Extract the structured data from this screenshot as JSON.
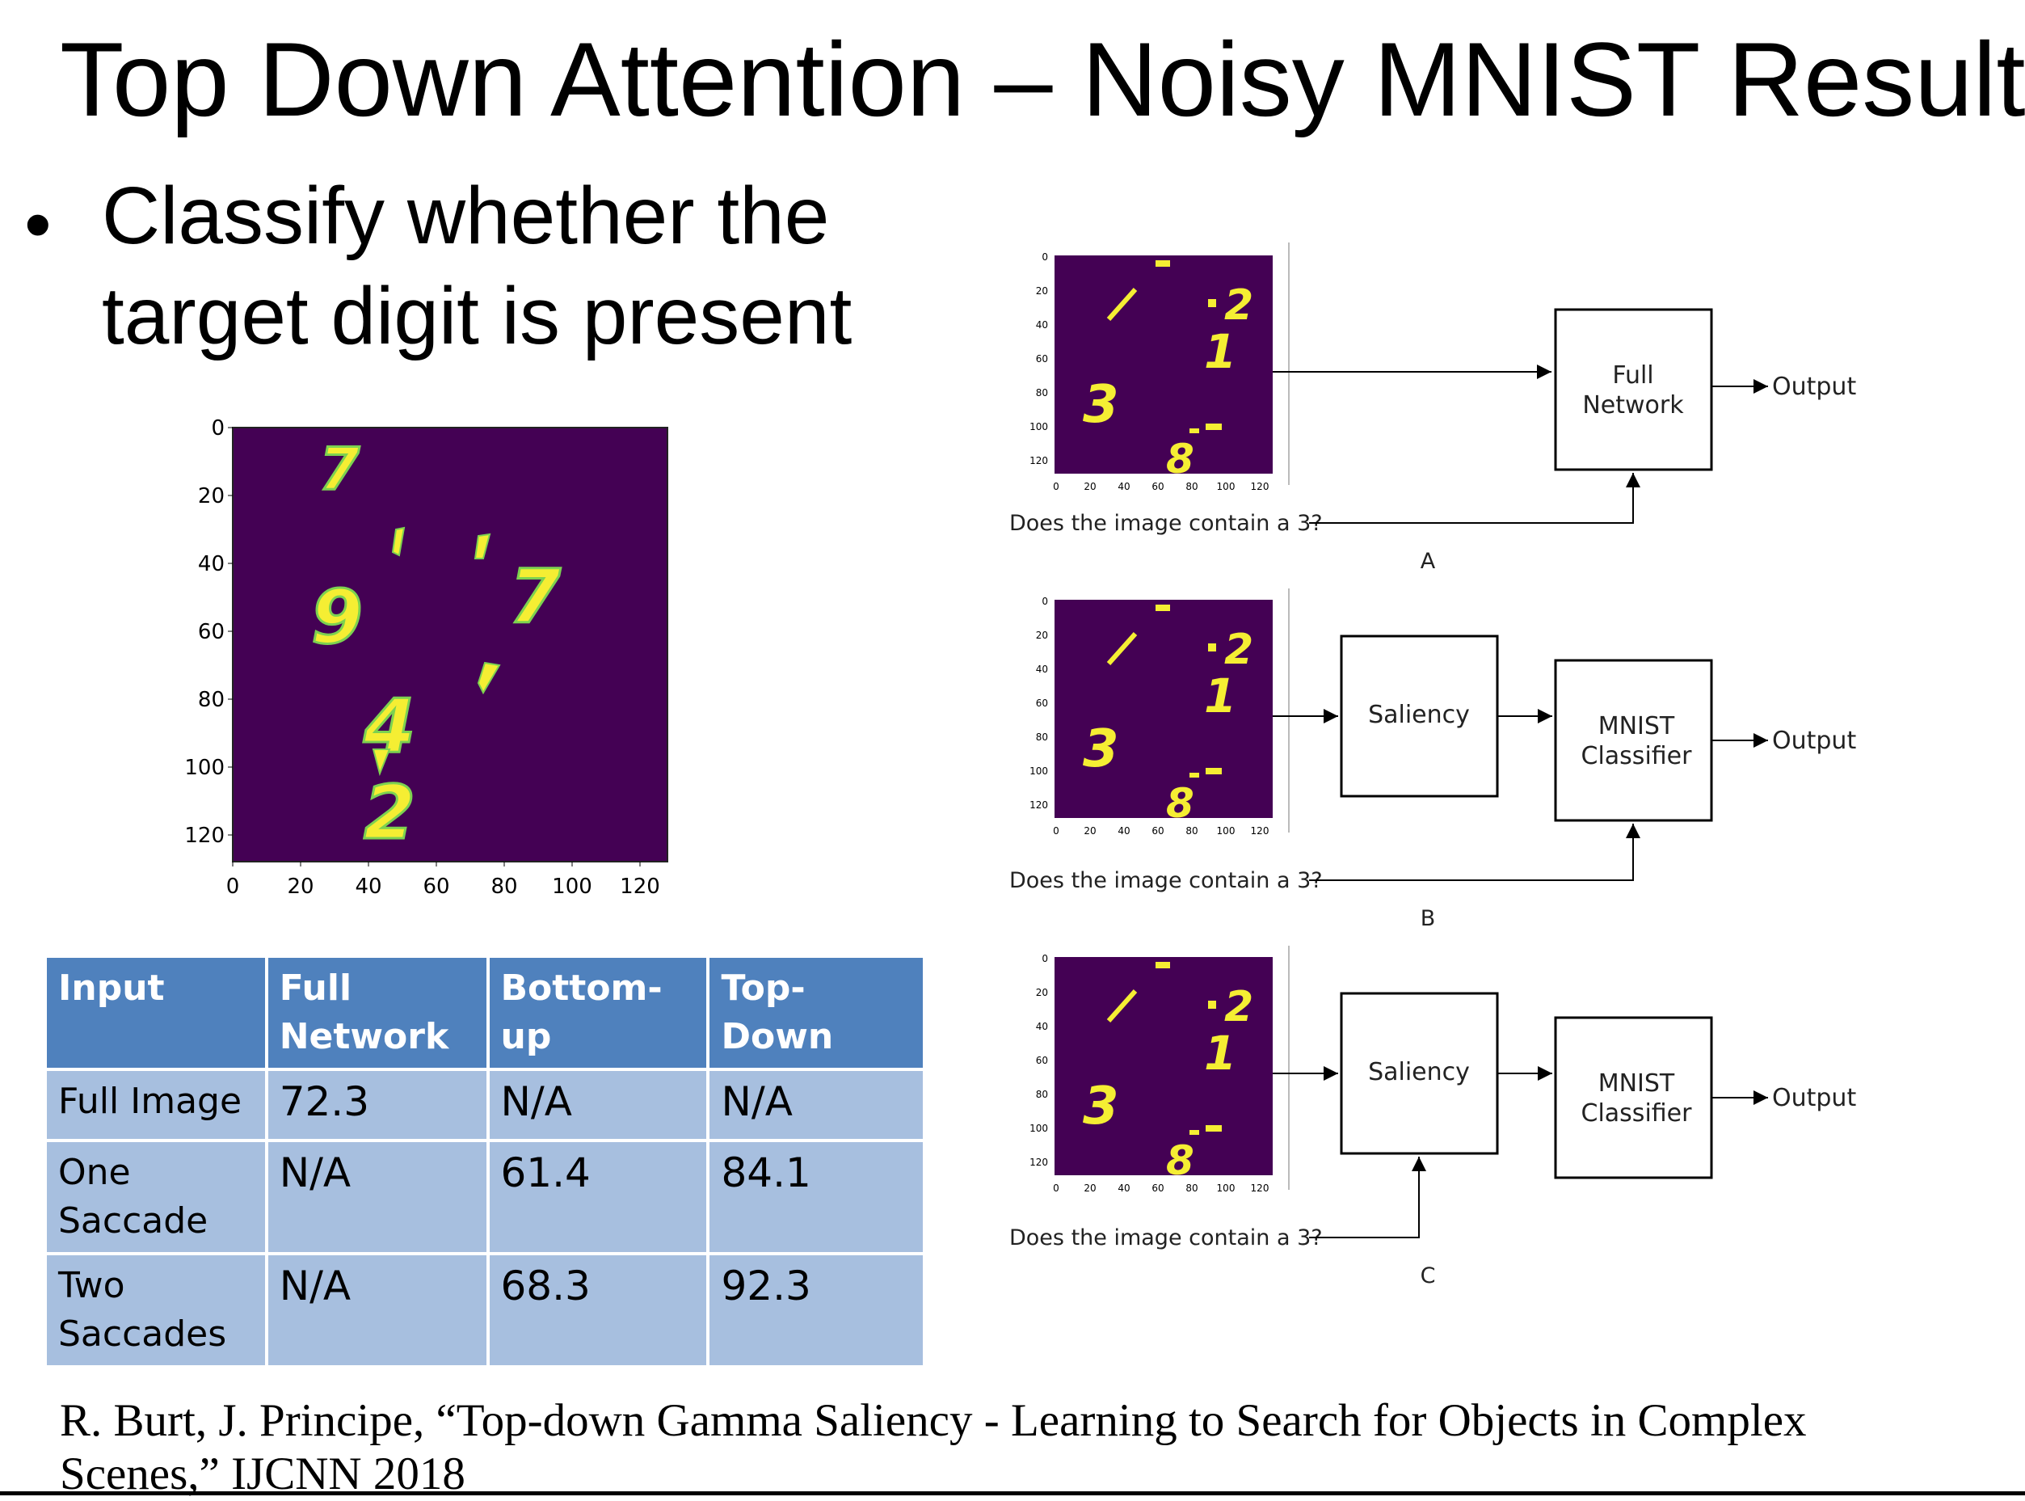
{
  "title": "Top Down Attention – Noisy MNIST Results",
  "bullet": "Classify whether the target digit is present",
  "example_plot": {
    "yticks": [
      "0",
      "20",
      "40",
      "60",
      "80",
      "100",
      "120"
    ],
    "xticks": [
      "0",
      "20",
      "40",
      "60",
      "80",
      "100",
      "120"
    ],
    "digits": [
      "7",
      "9",
      "7",
      "4",
      "2"
    ]
  },
  "table": {
    "headers": [
      "Input",
      "Full Network",
      "Bottom-up",
      "Top-Down"
    ],
    "rows": [
      {
        "input": "Full Image",
        "full_network": "72.3",
        "bottom_up": "N/A",
        "top_down": "N/A"
      },
      {
        "input": "One Saccade",
        "full_network": "N/A",
        "bottom_up": "61.4",
        "top_down": "84.1"
      },
      {
        "input": "Two Saccades",
        "full_network": "N/A",
        "bottom_up": "68.3",
        "top_down": "92.3"
      }
    ]
  },
  "diagrams": {
    "question": "Does the image contain a 3?",
    "output_label": "Output",
    "panel_digits": [
      "2",
      "1",
      "3",
      "8"
    ],
    "small_ticks": [
      "0",
      "20",
      "40",
      "60",
      "80",
      "100",
      "120"
    ],
    "panels": [
      {
        "letter": "A",
        "box1": "Full Network"
      },
      {
        "letter": "B",
        "saliency": "Saliency",
        "box2": "MNIST Classifier"
      },
      {
        "letter": "C",
        "saliency": "Saliency",
        "box2": "MNIST Classifier"
      }
    ]
  },
  "citation": "R. Burt, J. Principe, “Top-down Gamma Saliency - Learning to Search for Objects in Complex Scenes,” IJCNN 2018",
  "colors": {
    "heatmap_bg": "#440154",
    "digit": "#f5ee33",
    "header_blue": "#4f81bd",
    "cell_blue": "#a7bfdf"
  }
}
